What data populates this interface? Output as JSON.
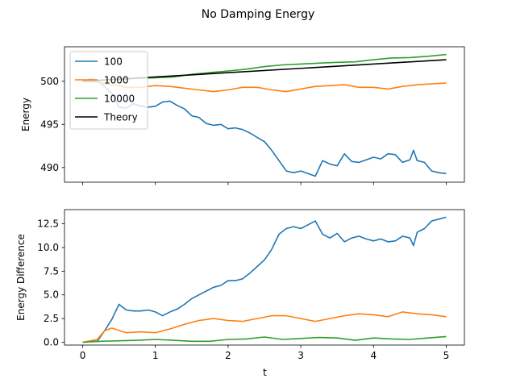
{
  "chart_data": {
    "type": "line",
    "title": "No Damping Energy",
    "x_range": [
      0,
      5
    ],
    "xlabel": "t",
    "xticks": [
      "0",
      "1",
      "2",
      "3",
      "4",
      "5"
    ],
    "xtick_values": [
      0,
      1,
      2,
      3,
      4,
      5
    ],
    "colors": {
      "s100": "#1f77b4",
      "s1000": "#ff7f0e",
      "s10000": "#2ca02c",
      "theory": "#000000"
    },
    "grid": false,
    "panels": [
      {
        "ylabel": "Energy",
        "ylim": [
          488.3,
          504.0
        ],
        "yticks": [
          "490",
          "495",
          "500"
        ],
        "ytick_values": [
          490,
          495,
          500
        ],
        "show_xtick_labels": false,
        "legend": {
          "placement": "upper-left",
          "entries": [
            "100",
            "1000",
            "10000",
            "Theory"
          ]
        },
        "series": [
          {
            "name": "100",
            "color": "#1f77b4",
            "x": [
              0,
              0.1,
              0.2,
              0.3,
              0.4,
              0.5,
              0.6,
              0.7,
              0.8,
              0.9,
              1.0,
              1.1,
              1.2,
              1.3,
              1.4,
              1.5,
              1.6,
              1.7,
              1.8,
              1.9,
              2.0,
              2.1,
              2.2,
              2.3,
              2.4,
              2.5,
              2.6,
              2.7,
              2.8,
              2.9,
              3.0,
              3.1,
              3.2,
              3.3,
              3.4,
              3.5,
              3.6,
              3.7,
              3.8,
              3.9,
              4.0,
              4.1,
              4.2,
              4.3,
              4.4,
              4.5,
              4.55,
              4.6,
              4.7,
              4.8,
              4.9,
              5.0
            ],
            "y": [
              500.0,
              500.3,
              500.1,
              499.4,
              498.6,
              497.0,
              496.9,
              497.4,
              497.1,
              497.0,
              497.1,
              497.6,
              497.7,
              497.2,
              496.8,
              496.0,
              495.8,
              495.1,
              494.9,
              495.0,
              494.5,
              494.6,
              494.4,
              494.0,
              493.5,
              493.0,
              492.0,
              490.8,
              489.6,
              489.4,
              489.6,
              489.3,
              489.0,
              490.8,
              490.4,
              490.2,
              491.6,
              490.7,
              490.6,
              490.9,
              491.2,
              491.0,
              491.6,
              491.5,
              490.6,
              490.9,
              492.0,
              490.8,
              490.6,
              489.6,
              489.4,
              489.3
            ]
          },
          {
            "name": "1000",
            "color": "#ff7f0e",
            "x": [
              0,
              0.2,
              0.4,
              0.6,
              0.8,
              1.0,
              1.2,
              1.4,
              1.6,
              1.8,
              2.0,
              2.2,
              2.4,
              2.6,
              2.8,
              3.0,
              3.2,
              3.4,
              3.6,
              3.8,
              4.0,
              4.2,
              4.4,
              4.6,
              4.8,
              5.0
            ],
            "y": [
              500.0,
              499.9,
              499.6,
              499.3,
              499.3,
              499.5,
              499.4,
              499.2,
              499.0,
              498.8,
              499.0,
              499.3,
              499.3,
              499.0,
              498.8,
              499.1,
              499.4,
              499.5,
              499.6,
              499.3,
              499.3,
              499.1,
              499.4,
              499.6,
              499.7,
              499.8
            ]
          },
          {
            "name": "10000",
            "color": "#2ca02c",
            "x": [
              0,
              0.25,
              0.5,
              0.75,
              1.0,
              1.25,
              1.5,
              1.75,
              2.0,
              2.25,
              2.5,
              2.75,
              3.0,
              3.25,
              3.5,
              3.75,
              4.0,
              4.25,
              4.5,
              4.75,
              5.0
            ],
            "y": [
              500.0,
              500.1,
              500.2,
              500.35,
              500.4,
              500.5,
              500.8,
              501.0,
              501.2,
              501.4,
              501.7,
              501.9,
              502.0,
              502.1,
              502.2,
              502.25,
              502.5,
              502.7,
              502.75,
              502.9,
              503.1
            ]
          },
          {
            "name": "Theory",
            "color": "#000000",
            "x": [
              0,
              5
            ],
            "y": [
              500.0,
              502.5
            ]
          }
        ]
      },
      {
        "ylabel": "Energy Difference",
        "ylim": [
          -0.3,
          14.0
        ],
        "yticks": [
          "0.0",
          "2.5",
          "5.0",
          "7.5",
          "10.0",
          "12.5"
        ],
        "ytick_values": [
          0,
          2.5,
          5,
          7.5,
          10,
          12.5
        ],
        "show_xtick_labels": true,
        "series": [
          {
            "name": "100",
            "color": "#1f77b4",
            "x": [
              0,
              0.1,
              0.2,
              0.3,
              0.4,
              0.5,
              0.6,
              0.7,
              0.8,
              0.9,
              1.0,
              1.1,
              1.2,
              1.3,
              1.4,
              1.5,
              1.6,
              1.7,
              1.8,
              1.9,
              2.0,
              2.1,
              2.2,
              2.3,
              2.4,
              2.5,
              2.6,
              2.7,
              2.8,
              2.9,
              3.0,
              3.1,
              3.2,
              3.3,
              3.4,
              3.5,
              3.6,
              3.7,
              3.8,
              3.9,
              4.0,
              4.1,
              4.2,
              4.3,
              4.4,
              4.5,
              4.55,
              4.6,
              4.7,
              4.8,
              4.9,
              5.0
            ],
            "y": [
              0.0,
              0.1,
              0.1,
              1.2,
              2.4,
              4.0,
              3.4,
              3.3,
              3.3,
              3.4,
              3.2,
              2.8,
              3.2,
              3.5,
              4.0,
              4.6,
              5.0,
              5.4,
              5.8,
              6.0,
              6.5,
              6.5,
              6.7,
              7.3,
              8.0,
              8.7,
              9.8,
              11.4,
              12.0,
              12.2,
              12.0,
              12.4,
              12.8,
              11.4,
              11.0,
              11.5,
              10.6,
              11.0,
              11.2,
              10.9,
              10.7,
              10.9,
              10.6,
              10.7,
              11.2,
              11.0,
              10.2,
              11.6,
              12.0,
              12.8,
              13.0,
              13.2
            ]
          },
          {
            "name": "1000",
            "color": "#ff7f0e",
            "x": [
              0,
              0.2,
              0.3,
              0.4,
              0.6,
              0.8,
              1.0,
              1.2,
              1.4,
              1.6,
              1.8,
              2.0,
              2.2,
              2.4,
              2.6,
              2.8,
              3.0,
              3.2,
              3.4,
              3.6,
              3.8,
              4.0,
              4.2,
              4.4,
              4.6,
              4.8,
              5.0
            ],
            "y": [
              0.0,
              0.3,
              1.2,
              1.5,
              1.0,
              1.1,
              1.0,
              1.4,
              1.9,
              2.3,
              2.5,
              2.3,
              2.2,
              2.5,
              2.8,
              2.8,
              2.5,
              2.2,
              2.5,
              2.8,
              3.0,
              2.9,
              2.7,
              3.2,
              3.0,
              2.9,
              2.7
            ]
          },
          {
            "name": "10000",
            "color": "#2ca02c",
            "x": [
              0,
              0.25,
              0.5,
              0.75,
              1.0,
              1.25,
              1.5,
              1.75,
              2.0,
              2.25,
              2.5,
              2.75,
              3.0,
              3.25,
              3.5,
              3.75,
              4.0,
              4.25,
              4.5,
              4.75,
              5.0
            ],
            "y": [
              0.0,
              0.1,
              0.15,
              0.2,
              0.3,
              0.2,
              0.1,
              0.1,
              0.3,
              0.35,
              0.55,
              0.3,
              0.4,
              0.5,
              0.45,
              0.2,
              0.45,
              0.35,
              0.3,
              0.45,
              0.6
            ]
          }
        ]
      }
    ]
  }
}
